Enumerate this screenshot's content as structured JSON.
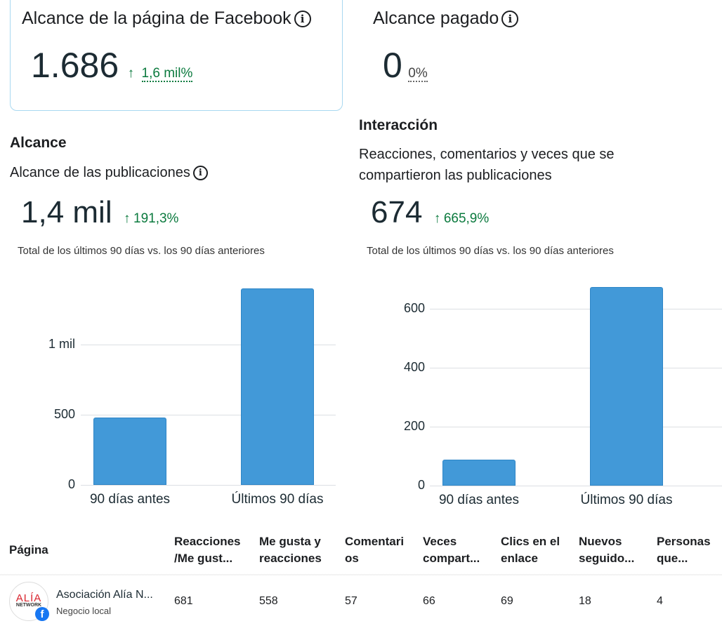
{
  "reach_card": {
    "title": "Alcance de la página de Facebook",
    "value": "1.686",
    "change": "1,6 mil%"
  },
  "paid_card": {
    "title": "Alcance pagado",
    "value": "0",
    "change": "0%"
  },
  "reach_section": {
    "heading": "Alcance",
    "subtitle": "Alcance de las publicaciones",
    "value": "1,4 mil",
    "change": "191,3%",
    "note": "Total de los últimos 90 días vs. los 90 días anteriores"
  },
  "interaction_section": {
    "heading": "Interacción",
    "subtitle_line1": "Reacciones, comentarios y veces que se",
    "subtitle_line2": "compartieron las publicaciones",
    "value": "674",
    "change": "665,9%",
    "note": "Total de los últimos 90 días vs. los 90 días anteriores"
  },
  "chart_data": [
    {
      "type": "bar",
      "categories": [
        "90 días antes",
        "Últimos 90 días"
      ],
      "values": [
        481,
        1400
      ],
      "ylim": [
        0,
        1400
      ],
      "yticks": [
        {
          "v": 0,
          "label": "0"
        },
        {
          "v": 500,
          "label": "500"
        },
        {
          "v": 1000,
          "label": "1 mil"
        }
      ],
      "title": "Alcance de las publicaciones"
    },
    {
      "type": "bar",
      "categories": [
        "90 días antes",
        "Últimos 90 días"
      ],
      "values": [
        88,
        674
      ],
      "ylim": [
        0,
        674
      ],
      "yticks": [
        {
          "v": 0,
          "label": "0"
        },
        {
          "v": 200,
          "label": "200"
        },
        {
          "v": 400,
          "label": "400"
        },
        {
          "v": 600,
          "label": "600"
        }
      ],
      "title": "Interacción"
    }
  ],
  "table": {
    "headers": [
      [
        "Página",
        ""
      ],
      [
        "Reacciones",
        "/Me gust..."
      ],
      [
        "Me gusta y",
        "reacciones"
      ],
      [
        "Comentari",
        "os"
      ],
      [
        "Veces",
        "compart..."
      ],
      [
        "Clics en el",
        "enlace"
      ],
      [
        "Nuevos",
        "seguido..."
      ],
      [
        "Personas",
        "que..."
      ]
    ],
    "row": {
      "avatar_text": "ALÍA NETWORK",
      "name": "Asociación Alía N...",
      "category": "Negocio local",
      "values": [
        "681",
        "558",
        "57",
        "66",
        "69",
        "18",
        "4"
      ]
    }
  },
  "colors": {
    "bar": "#4299d8",
    "positive": "#0b7a3e"
  }
}
